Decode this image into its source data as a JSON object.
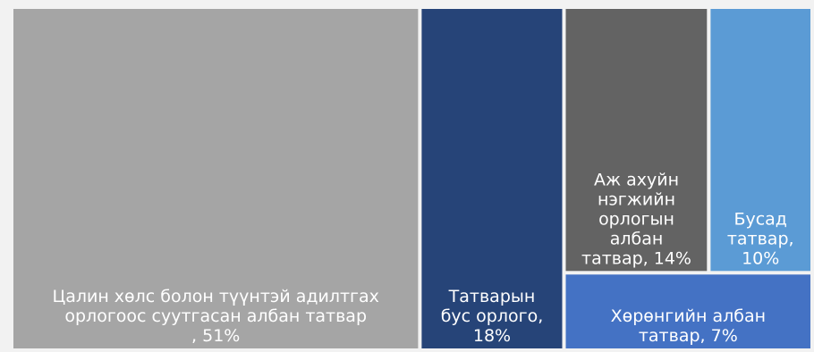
{
  "chart_data": {
    "type": "treemap",
    "title": "",
    "items": [
      {
        "label_lines": [
          "Цалин хөлс болон түүнтэй адилтгах",
          "орлогоос суутгасан албан татвар",
          ", 51%"
        ],
        "name": "Цалин хөлс болон түүнтэй адилтгах орлогоос суутгасан албан татвар",
        "value": 51,
        "color": "#a5a5a5"
      },
      {
        "label_lines": [
          "Татварын",
          "бус орлого,",
          "18%"
        ],
        "name": "Татварын бус орлого",
        "value": 18,
        "color": "#264478"
      },
      {
        "label_lines": [
          "Аж ахуйн",
          "нэгжийн",
          "орлогын",
          "албан",
          "татвар, 14%"
        ],
        "name": "Аж ахуйн нэгжийн орлогын албан татвар",
        "value": 14,
        "color": "#636363"
      },
      {
        "label_lines": [
          "Бусад",
          "татвар,",
          "10%"
        ],
        "name": "Бусад татвар",
        "value": 10,
        "color": "#5b9bd5"
      },
      {
        "label_lines": [
          "Хөрөнгийн албан",
          "татвар, 7%"
        ],
        "name": "Хөрөнгийн албан татвар",
        "value": 7,
        "color": "#4472c4"
      }
    ]
  }
}
